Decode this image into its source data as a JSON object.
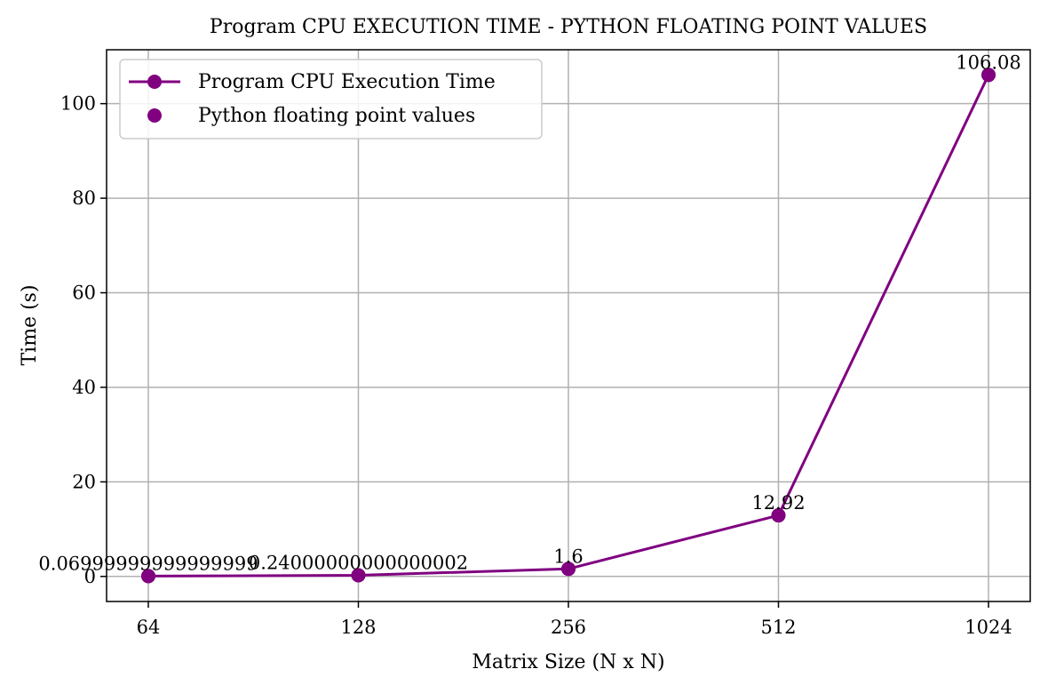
{
  "chart_data": {
    "type": "line",
    "title": "Program CPU EXECUTION TIME - PYTHON FLOATING POINT VALUES",
    "xlabel": "Matrix Size (N x N)",
    "ylabel": "Time (s)",
    "categories": [
      "64",
      "128",
      "256",
      "512",
      "1024"
    ],
    "series": [
      {
        "name": "Program CPU Execution Time",
        "values": [
          0.06999999999999999,
          0.24000000000000002,
          1.6,
          12.92,
          106.08
        ],
        "color": "#800080",
        "style": "line-with-markers"
      },
      {
        "name": "Python floating point values",
        "values": [
          0.06999999999999999,
          0.24000000000000002,
          1.6,
          12.92,
          106.08
        ],
        "color": "#800080",
        "style": "markers"
      }
    ],
    "data_labels": [
      "0.06999999999999999",
      "0.24000000000000002",
      "1.6",
      "12.92",
      "106.08"
    ],
    "yticks": [
      "0",
      "20",
      "40",
      "60",
      "80",
      "100"
    ],
    "ylim": [
      -5.3,
      111.4
    ],
    "grid": true,
    "legend_position": "top-left"
  }
}
